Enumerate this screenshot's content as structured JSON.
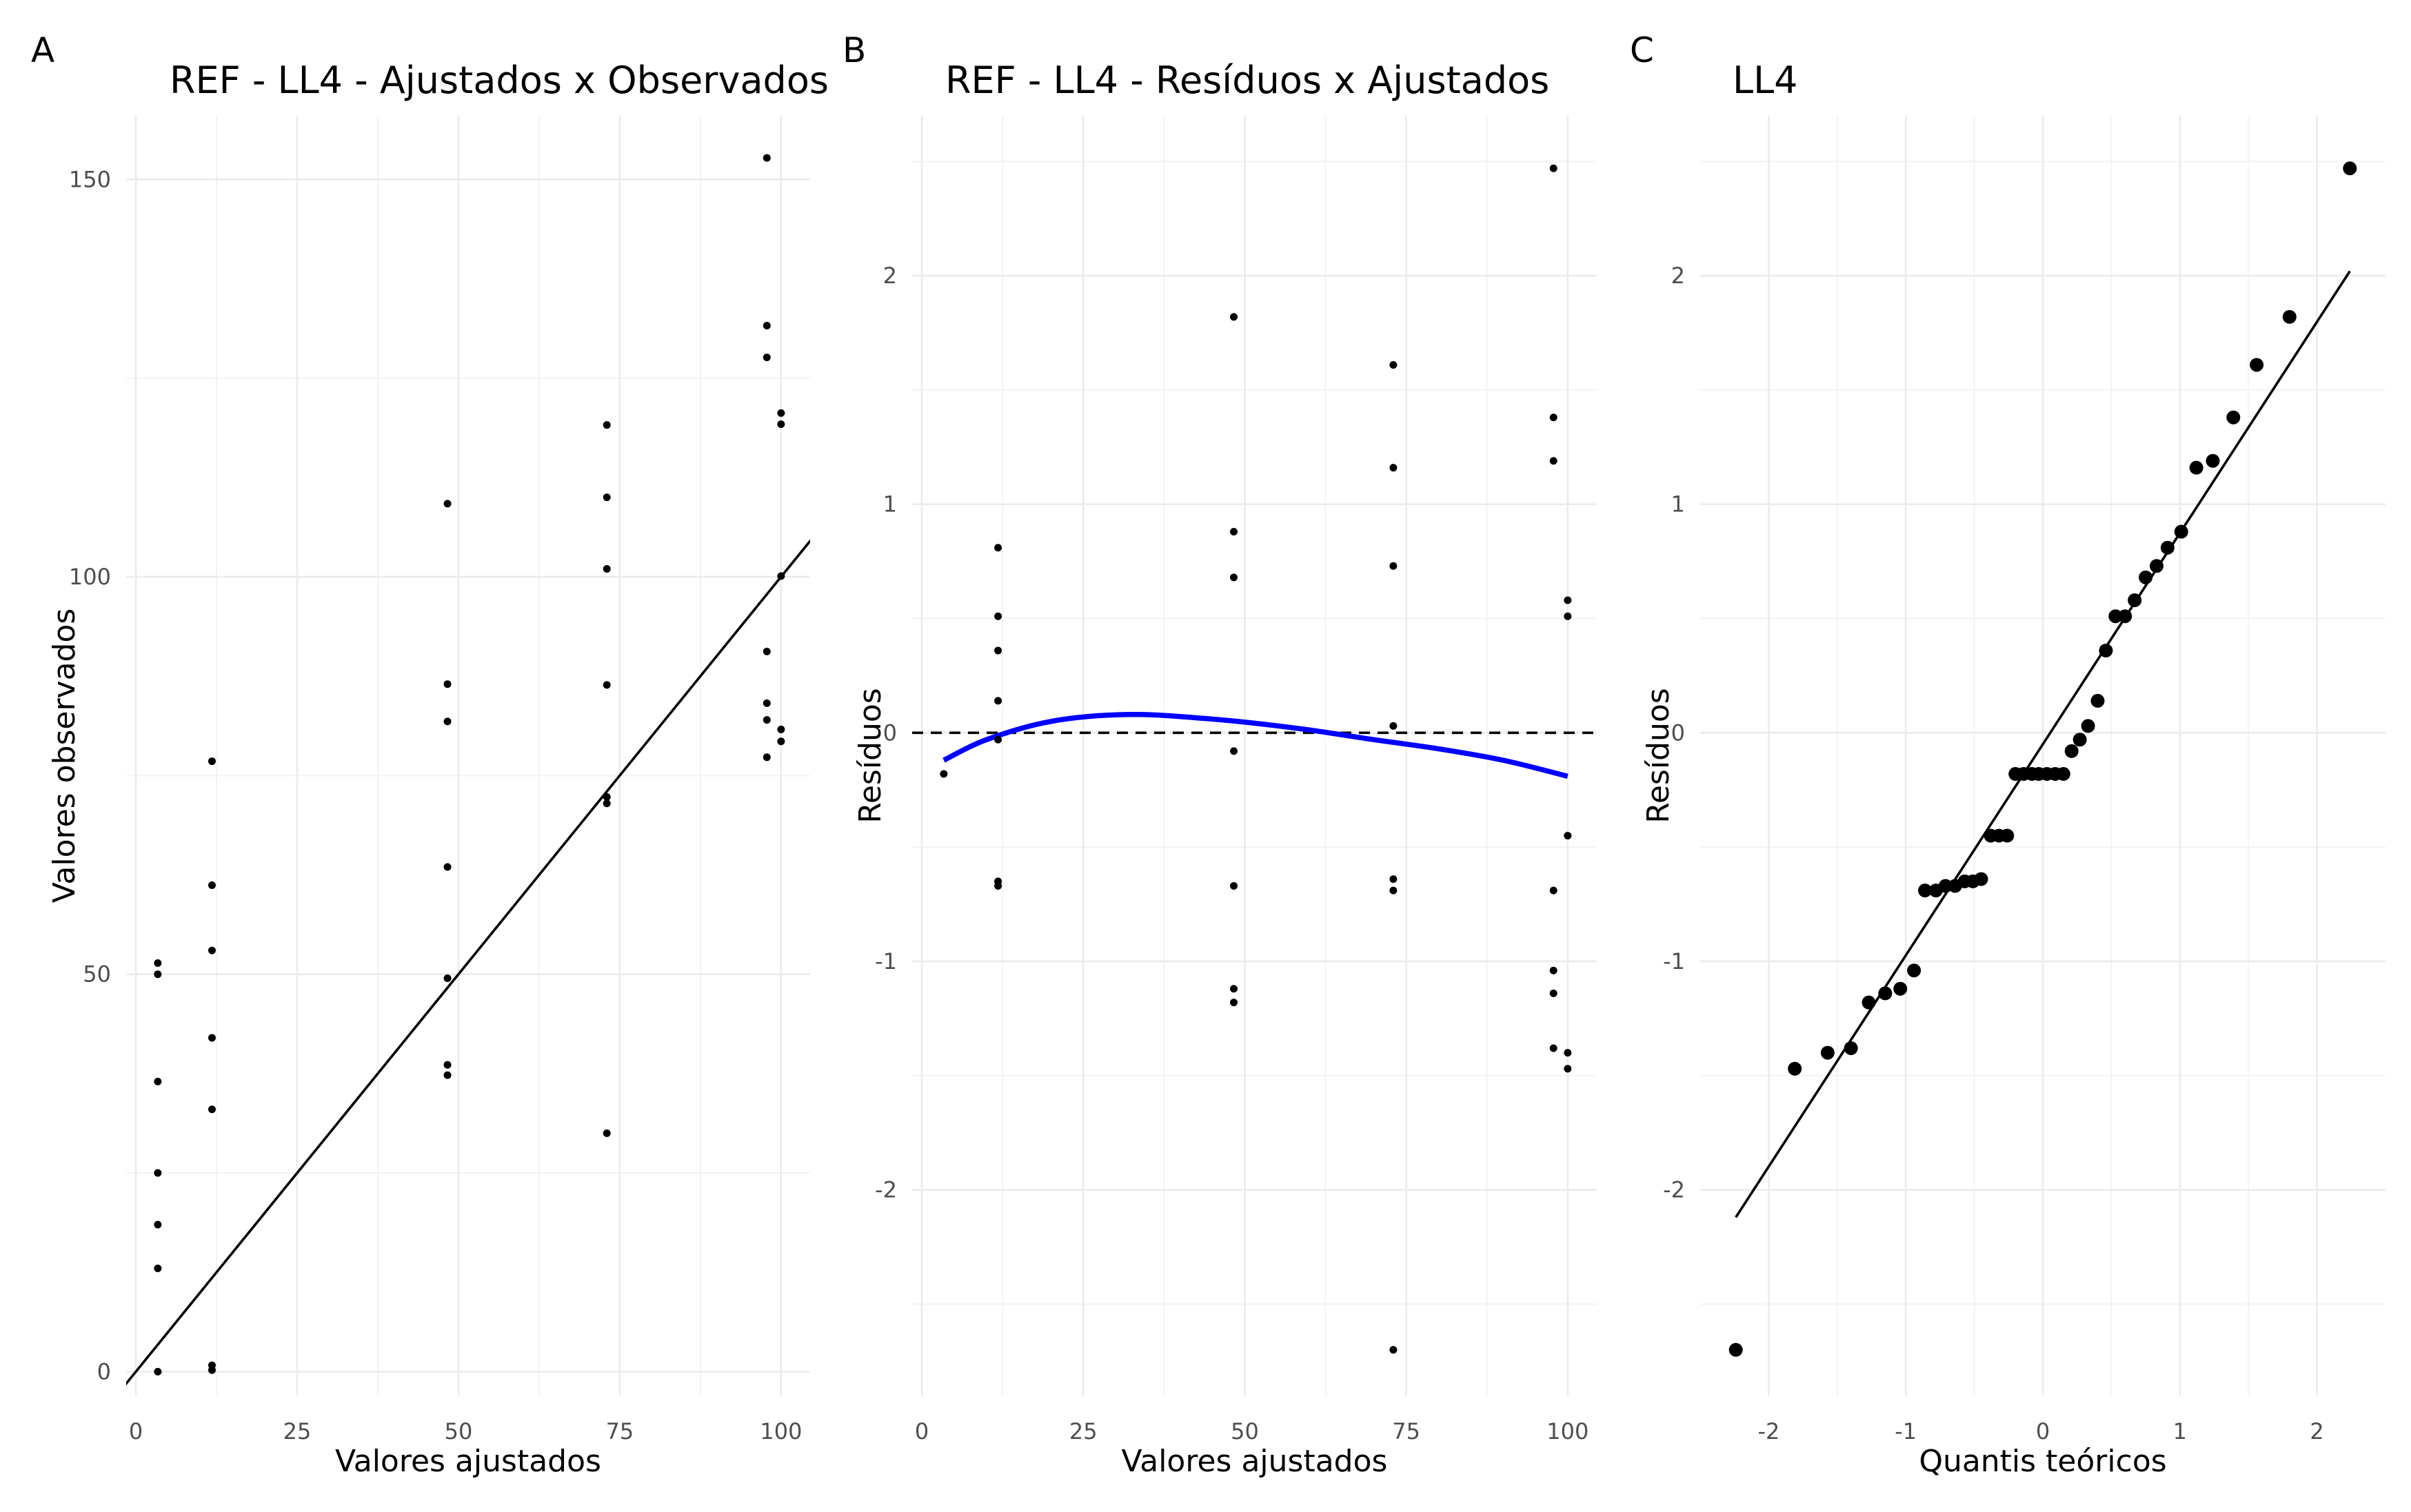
{
  "chart_data": [
    {
      "tag": "A",
      "type": "scatter",
      "title": "REF - LL4 - Ajustados x Observados",
      "xlabel": "Valores ajustados",
      "ylabel": "Valores observados",
      "xlim": [
        -1.5,
        104.5
      ],
      "ylim": [
        -3,
        158
      ],
      "xticks": [
        0,
        25,
        50,
        75,
        100
      ],
      "yticks": [
        0,
        50,
        100,
        150
      ],
      "grid": true,
      "reference_line": {
        "type": "identity",
        "slope": 1,
        "intercept": 0,
        "color": "#000000"
      },
      "points": [
        [
          3.4,
          51.4
        ],
        [
          3.4,
          50.0
        ],
        [
          3.4,
          36.5
        ],
        [
          3.4,
          25.0
        ],
        [
          3.4,
          18.5
        ],
        [
          3.4,
          13.0
        ],
        [
          3.4,
          0.0
        ],
        [
          11.8,
          76.8
        ],
        [
          11.8,
          61.2
        ],
        [
          11.8,
          53.0
        ],
        [
          11.8,
          42.0
        ],
        [
          11.8,
          33.0
        ],
        [
          11.8,
          0.8
        ],
        [
          11.8,
          0.2
        ],
        [
          48.3,
          109.2
        ],
        [
          48.3,
          86.5
        ],
        [
          48.3,
          81.8
        ],
        [
          48.3,
          63.5
        ],
        [
          48.3,
          49.5
        ],
        [
          48.3,
          38.6
        ],
        [
          48.3,
          37.3
        ],
        [
          73.0,
          119.1
        ],
        [
          73.0,
          110.0
        ],
        [
          73.0,
          101.0
        ],
        [
          73.0,
          86.4
        ],
        [
          73.0,
          72.3
        ],
        [
          73.0,
          71.5
        ],
        [
          73.0,
          30.0
        ],
        [
          97.8,
          152.7
        ],
        [
          97.8,
          131.6
        ],
        [
          97.8,
          127.6
        ],
        [
          97.8,
          90.6
        ],
        [
          97.8,
          84.1
        ],
        [
          97.8,
          82.0
        ],
        [
          97.8,
          77.3
        ],
        [
          100.0,
          120.6
        ],
        [
          100.0,
          119.2
        ],
        [
          100.0,
          100.1
        ],
        [
          100.0,
          80.8
        ],
        [
          100.0,
          79.3
        ]
      ]
    },
    {
      "tag": "B",
      "type": "scatter",
      "title": "REF - LL4 - Resíduos x Ajustados",
      "xlabel": "Valores ajustados",
      "ylabel": "Resíduos",
      "xlim": [
        -1.5,
        104.5
      ],
      "ylim": [
        -2.9,
        2.7
      ],
      "xticks": [
        0,
        25,
        50,
        75,
        100
      ],
      "yticks": [
        -2,
        -1,
        0,
        1,
        2
      ],
      "grid": true,
      "zero_line": {
        "y": 0,
        "style": "dashed",
        "color": "#000000"
      },
      "smooth_color": "#0000ff",
      "smooth": [
        [
          3.4,
          -0.12
        ],
        [
          10,
          -0.03
        ],
        [
          20,
          0.05
        ],
        [
          32,
          0.08
        ],
        [
          45,
          0.06
        ],
        [
          58,
          0.02
        ],
        [
          70,
          -0.03
        ],
        [
          80,
          -0.07
        ],
        [
          90,
          -0.12
        ],
        [
          100,
          -0.19
        ]
      ],
      "points": [
        [
          3.4,
          -0.18
        ],
        [
          11.8,
          0.81
        ],
        [
          11.8,
          0.51
        ],
        [
          11.8,
          0.36
        ],
        [
          11.8,
          0.14
        ],
        [
          11.8,
          -0.03
        ],
        [
          11.8,
          -0.65
        ],
        [
          11.8,
          -0.67
        ],
        [
          48.3,
          1.82
        ],
        [
          48.3,
          0.88
        ],
        [
          48.3,
          0.68
        ],
        [
          48.3,
          -0.08
        ],
        [
          48.3,
          -0.67
        ],
        [
          48.3,
          -1.12
        ],
        [
          48.3,
          -1.18
        ],
        [
          73.0,
          1.61
        ],
        [
          73.0,
          1.16
        ],
        [
          73.0,
          0.73
        ],
        [
          73.0,
          0.03
        ],
        [
          73.0,
          -0.64
        ],
        [
          73.0,
          -0.69
        ],
        [
          73.0,
          -2.7
        ],
        [
          97.8,
          2.47
        ],
        [
          97.8,
          1.38
        ],
        [
          97.8,
          1.19
        ],
        [
          97.8,
          -0.69
        ],
        [
          97.8,
          -1.04
        ],
        [
          97.8,
          -1.14
        ],
        [
          97.8,
          -1.38
        ],
        [
          100.0,
          0.58
        ],
        [
          100.0,
          0.51
        ],
        [
          100.0,
          -0.45
        ],
        [
          100.0,
          -1.4
        ],
        [
          100.0,
          -1.47
        ]
      ]
    },
    {
      "tag": "C",
      "type": "scatter",
      "title": "LL4",
      "xlabel": "Quantis teóricos",
      "ylabel": "Resíduos",
      "xlim": [
        -2.5,
        2.5
      ],
      "ylim": [
        -2.9,
        2.7
      ],
      "xticks": [
        -2,
        -1,
        0,
        1,
        2
      ],
      "yticks": [
        -2,
        -1,
        0,
        1,
        2
      ],
      "grid": true,
      "qq_line": {
        "from": [
          -2.24,
          -2.12
        ],
        "to": [
          2.24,
          2.02
        ],
        "color": "#000000"
      },
      "points": [
        [
          -2.24,
          -2.7
        ],
        [
          -1.81,
          -1.47
        ],
        [
          -1.57,
          -1.4
        ],
        [
          -1.4,
          -1.38
        ],
        [
          -1.27,
          -1.18
        ],
        [
          -1.15,
          -1.14
        ],
        [
          -1.04,
          -1.12
        ],
        [
          -0.94,
          -1.04
        ],
        [
          -0.86,
          -0.69
        ],
        [
          -0.78,
          -0.69
        ],
        [
          -0.71,
          -0.67
        ],
        [
          -0.64,
          -0.67
        ],
        [
          -0.57,
          -0.65
        ],
        [
          -0.51,
          -0.65
        ],
        [
          -0.45,
          -0.64
        ],
        [
          -0.38,
          -0.45
        ],
        [
          -0.32,
          -0.45
        ],
        [
          -0.26,
          -0.45
        ],
        [
          -0.2,
          -0.18
        ],
        [
          -0.14,
          -0.18
        ],
        [
          -0.08,
          -0.18
        ],
        [
          -0.03,
          -0.18
        ],
        [
          0.03,
          -0.18
        ],
        [
          0.09,
          -0.18
        ],
        [
          0.15,
          -0.18
        ],
        [
          0.21,
          -0.08
        ],
        [
          0.27,
          -0.03
        ],
        [
          0.33,
          0.03
        ],
        [
          0.4,
          0.14
        ],
        [
          0.46,
          0.36
        ],
        [
          0.53,
          0.51
        ],
        [
          0.6,
          0.51
        ],
        [
          0.67,
          0.58
        ],
        [
          0.75,
          0.68
        ],
        [
          0.83,
          0.73
        ],
        [
          0.91,
          0.81
        ],
        [
          1.01,
          0.88
        ],
        [
          1.12,
          1.16
        ],
        [
          1.24,
          1.19
        ],
        [
          1.39,
          1.38
        ],
        [
          1.56,
          1.61
        ],
        [
          1.8,
          1.82
        ],
        [
          2.24,
          2.47
        ]
      ]
    }
  ]
}
